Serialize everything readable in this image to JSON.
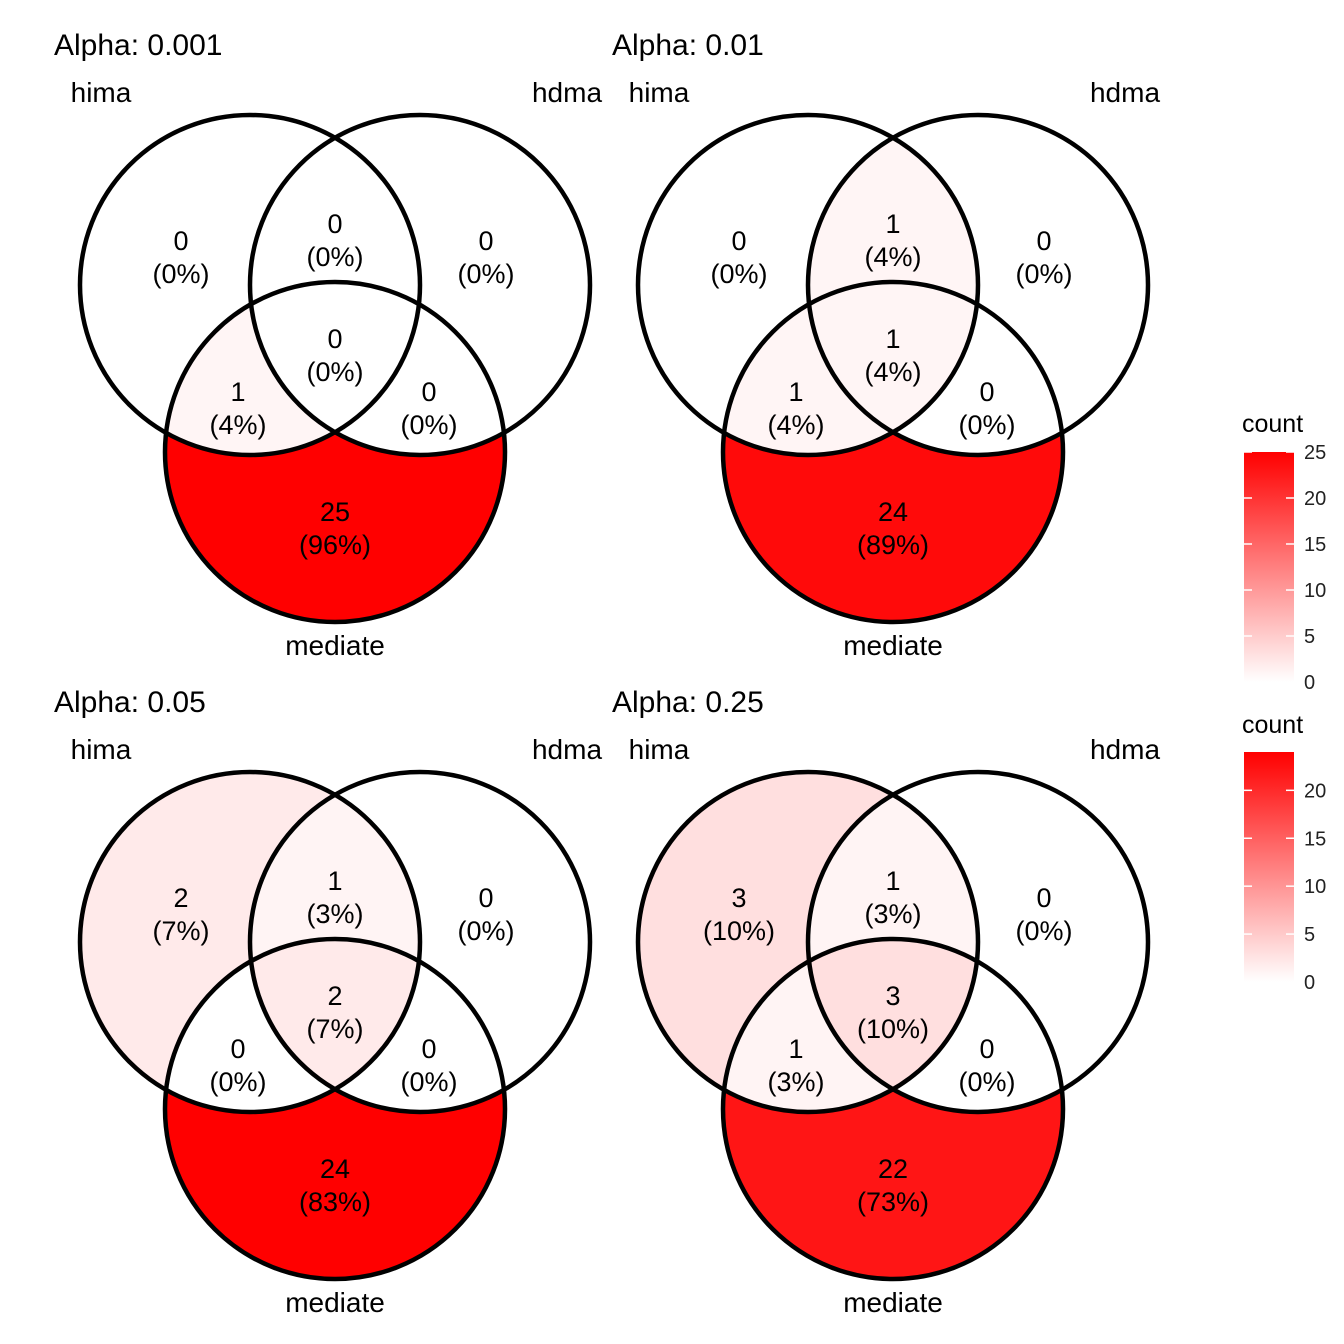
{
  "chart_data": [
    {
      "type": "venn",
      "title": "Alpha: 0.001",
      "sets": [
        "hima",
        "hdma",
        "mediate"
      ],
      "regions": [
        {
          "sets": [
            "hima"
          ],
          "count": 0,
          "percent": "(0%)"
        },
        {
          "sets": [
            "hdma"
          ],
          "count": 0,
          "percent": "(0%)"
        },
        {
          "sets": [
            "mediate"
          ],
          "count": 25,
          "percent": "(96%)"
        },
        {
          "sets": [
            "hima",
            "hdma"
          ],
          "count": 0,
          "percent": "(0%)"
        },
        {
          "sets": [
            "hima",
            "mediate"
          ],
          "count": 1,
          "percent": "(4%)"
        },
        {
          "sets": [
            "hdma",
            "mediate"
          ],
          "count": 0,
          "percent": "(0%)"
        },
        {
          "sets": [
            "hima",
            "hdma",
            "mediate"
          ],
          "count": 0,
          "percent": "(0%)"
        }
      ]
    },
    {
      "type": "venn",
      "title": "Alpha: 0.01",
      "sets": [
        "hima",
        "hdma",
        "mediate"
      ],
      "regions": [
        {
          "sets": [
            "hima"
          ],
          "count": 0,
          "percent": "(0%)"
        },
        {
          "sets": [
            "hdma"
          ],
          "count": 0,
          "percent": "(0%)"
        },
        {
          "sets": [
            "mediate"
          ],
          "count": 24,
          "percent": "(89%)"
        },
        {
          "sets": [
            "hima",
            "hdma"
          ],
          "count": 1,
          "percent": "(4%)"
        },
        {
          "sets": [
            "hima",
            "mediate"
          ],
          "count": 1,
          "percent": "(4%)"
        },
        {
          "sets": [
            "hdma",
            "mediate"
          ],
          "count": 0,
          "percent": "(0%)"
        },
        {
          "sets": [
            "hima",
            "hdma",
            "mediate"
          ],
          "count": 1,
          "percent": "(4%)"
        }
      ]
    },
    {
      "type": "venn",
      "title": "Alpha: 0.05",
      "sets": [
        "hima",
        "hdma",
        "mediate"
      ],
      "regions": [
        {
          "sets": [
            "hima"
          ],
          "count": 2,
          "percent": "(7%)"
        },
        {
          "sets": [
            "hdma"
          ],
          "count": 0,
          "percent": "(0%)"
        },
        {
          "sets": [
            "mediate"
          ],
          "count": 24,
          "percent": "(83%)"
        },
        {
          "sets": [
            "hima",
            "hdma"
          ],
          "count": 1,
          "percent": "(3%)"
        },
        {
          "sets": [
            "hima",
            "mediate"
          ],
          "count": 0,
          "percent": "(0%)"
        },
        {
          "sets": [
            "hdma",
            "mediate"
          ],
          "count": 0,
          "percent": "(0%)"
        },
        {
          "sets": [
            "hima",
            "hdma",
            "mediate"
          ],
          "count": 2,
          "percent": "(7%)"
        }
      ]
    },
    {
      "type": "venn",
      "title": "Alpha: 0.25",
      "sets": [
        "hima",
        "hdma",
        "mediate"
      ],
      "regions": [
        {
          "sets": [
            "hima"
          ],
          "count": 3,
          "percent": "(10%)"
        },
        {
          "sets": [
            "hdma"
          ],
          "count": 0,
          "percent": "(0%)"
        },
        {
          "sets": [
            "mediate"
          ],
          "count": 22,
          "percent": "(73%)"
        },
        {
          "sets": [
            "hima",
            "hdma"
          ],
          "count": 1,
          "percent": "(3%)"
        },
        {
          "sets": [
            "hima",
            "mediate"
          ],
          "count": 1,
          "percent": "(3%)"
        },
        {
          "sets": [
            "hdma",
            "mediate"
          ],
          "count": 0,
          "percent": "(0%)"
        },
        {
          "sets": [
            "hima",
            "hdma",
            "mediate"
          ],
          "count": 3,
          "percent": "(10%)"
        }
      ]
    }
  ],
  "legends": [
    {
      "title": "count",
      "ticks": [
        0,
        5,
        10,
        15,
        20,
        25
      ],
      "range": [
        0,
        25
      ],
      "low_color": "#ffffff",
      "high_color": "#ff0000"
    },
    {
      "title": "count",
      "ticks": [
        0,
        5,
        10,
        15,
        20
      ],
      "range": [
        0,
        24
      ],
      "low_color": "#ffffff",
      "high_color": "#ff0000"
    }
  ],
  "colors": {
    "low": "#ffffff",
    "high": "#ff0000",
    "outline": "#000000"
  }
}
